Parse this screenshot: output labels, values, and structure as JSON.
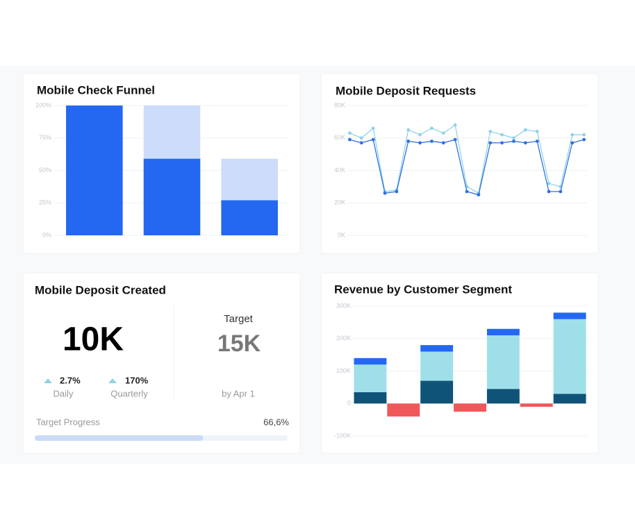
{
  "chart_data": [
    {
      "type": "bar",
      "title": "Mobile Check Funnel",
      "categories": [
        null,
        null,
        null
      ],
      "overlap": true,
      "series": [
        {
          "color": "#ccdcfa",
          "values": [
            100,
            100,
            59
          ]
        },
        {
          "color": "#2468f2",
          "values": [
            100,
            59,
            27
          ]
        }
      ],
      "ylim": [
        0,
        100
      ],
      "yticks": [
        {
          "value": 0,
          "label": "0%"
        },
        {
          "value": 25,
          "label": "25%"
        },
        {
          "value": 50,
          "label": "50%"
        },
        {
          "value": 75,
          "label": "75%"
        },
        {
          "value": 100,
          "label": "100%"
        }
      ],
      "grid": true
    },
    {
      "type": "line",
      "title": "Mobile Deposit Requests",
      "categories": [
        null,
        null,
        null,
        null,
        null,
        null,
        null,
        null,
        null,
        null,
        null,
        null,
        null,
        null,
        null,
        null,
        null,
        null,
        null,
        null,
        null
      ],
      "series": [
        {
          "color": "#8fd3e8",
          "values": [
            63000,
            60000,
            66000,
            27000,
            28000,
            65000,
            62000,
            66000,
            63000,
            68000,
            30000,
            26000,
            64000,
            62000,
            60000,
            65000,
            64000,
            32000,
            30000,
            62000,
            62000
          ]
        },
        {
          "color": "#2f6fe0",
          "values": [
            59000,
            57000,
            59000,
            26000,
            27000,
            58000,
            57000,
            58000,
            57000,
            59000,
            27000,
            25000,
            57000,
            57000,
            58000,
            57000,
            58000,
            27000,
            27000,
            57000,
            59000
          ]
        }
      ],
      "ylim": [
        0,
        80000
      ],
      "yticks": [
        {
          "value": 0,
          "label": "0K"
        },
        {
          "value": 20000,
          "label": "20K"
        },
        {
          "value": 40000,
          "label": "40K"
        },
        {
          "value": 60000,
          "label": "60K"
        },
        {
          "value": 80000,
          "label": "80K"
        }
      ],
      "grid": true
    },
    {
      "type": "stacked_bar",
      "title": "Revenue by Customer Segment",
      "categories": [
        null,
        null,
        null,
        null,
        null,
        null,
        null
      ],
      "series": [
        {
          "color": "#0f5478",
          "values": [
            35000,
            null,
            70000,
            null,
            45000,
            null,
            30000
          ]
        },
        {
          "color": "#9fdfea",
          "values": [
            85000,
            null,
            90000,
            null,
            165000,
            null,
            230000
          ]
        },
        {
          "color": "#2468f2",
          "values": [
            20000,
            null,
            20000,
            null,
            20000,
            null,
            20000
          ]
        },
        {
          "color": "#f0575a",
          "values": [
            null,
            -40000,
            null,
            -25000,
            null,
            -10000,
            null
          ]
        }
      ],
      "ylim": [
        -100000,
        300000
      ],
      "yticks": [
        {
          "value": -100000,
          "label": "-100K"
        },
        0,
        {
          "value": 100000,
          "label": "100K"
        },
        {
          "value": 200000,
          "label": "200K"
        },
        {
          "value": 300000,
          "label": "300K"
        }
      ],
      "grid": true
    }
  ],
  "kpi_card": {
    "title": "Mobile Deposit Created",
    "value": "10K",
    "changes": [
      {
        "value": "2.7%",
        "label": "Daily"
      },
      {
        "value": "170%",
        "label": "Quarterly"
      }
    ],
    "target": {
      "label": "Target",
      "value": "15K",
      "note": "by Apr 1"
    },
    "progress": {
      "label": "Target Progress",
      "value": 66.6,
      "value_label": "66,6%"
    }
  }
}
